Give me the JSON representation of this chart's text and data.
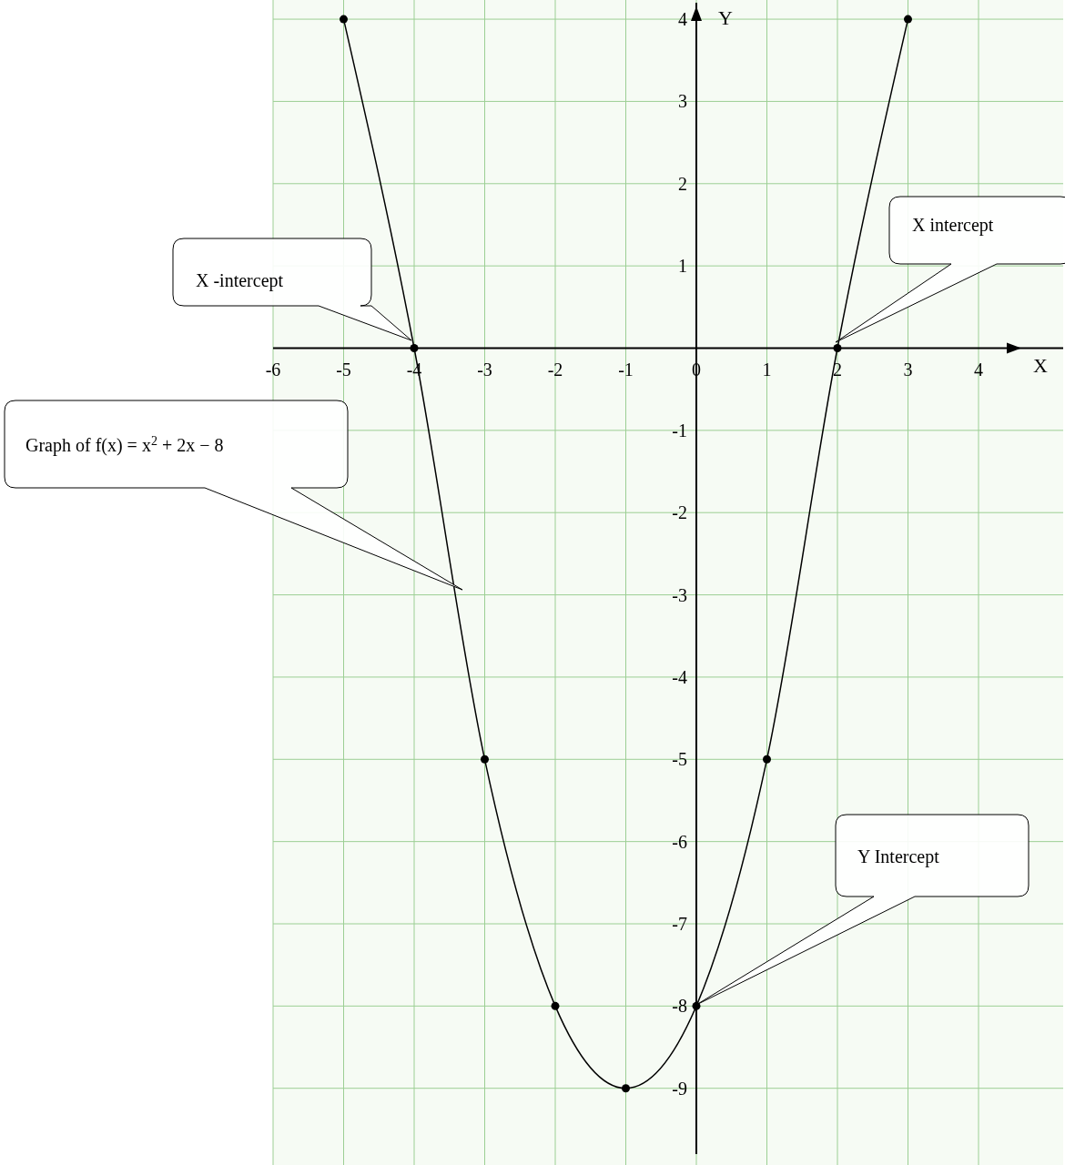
{
  "chart_data": {
    "type": "line",
    "x": [
      -5,
      -4,
      -3,
      -2,
      -1,
      0,
      1,
      2,
      3
    ],
    "series": [
      {
        "color": "#000000",
        "values": [
          4,
          0,
          -5,
          -8,
          -9,
          -8,
          -5,
          0,
          4
        ]
      }
    ],
    "xlim": [
      -6,
      5.2
    ],
    "ylim": [
      -9.8,
      4.2
    ],
    "xticks": [
      -6,
      -5,
      -4,
      -3,
      -2,
      -1,
      0,
      1,
      2,
      3,
      4
    ],
    "yticks": [
      -9,
      -8,
      -7,
      -6,
      -5,
      -4,
      -3,
      -2,
      -1,
      1,
      2,
      3,
      4
    ],
    "xlabel": "X",
    "ylabel": "Y",
    "grid": true,
    "marker": "circle",
    "line_style": "solid",
    "annotations": [
      "X -intercept",
      "X intercept",
      "Graph of f(x) = x$^{2}$ + 2x − 8",
      "Y Intercept"
    ]
  }
}
